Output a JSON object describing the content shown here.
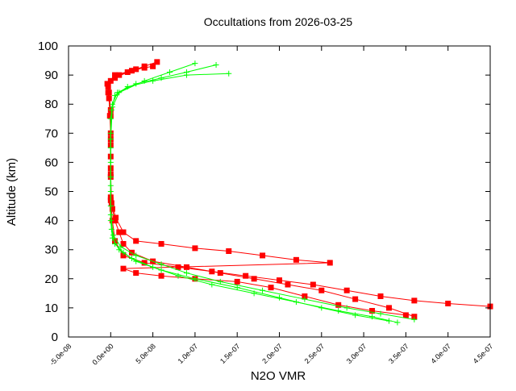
{
  "chart_data": {
    "type": "line",
    "title": "Occultations from 2026-03-25",
    "xlabel": "N2O VMR",
    "ylabel": "Altitude (km)",
    "xlim": [
      -5e-08,
      4.5e-07
    ],
    "ylim": [
      0,
      100
    ],
    "xticks": [
      "-5.0e-08",
      "0.0e+00",
      "5.0e-08",
      "1.0e-07",
      "1.5e-07",
      "2.0e-07",
      "2.5e-07",
      "3.0e-07",
      "3.5e-07",
      "4.0e-07",
      "4.5e-07"
    ],
    "xtick_values": [
      -5e-08,
      0,
      5e-08,
      1e-07,
      1.5e-07,
      2e-07,
      2.5e-07,
      3e-07,
      3.5e-07,
      4e-07,
      4.5e-07
    ],
    "yticks": [
      "0",
      "10",
      "20",
      "30",
      "40",
      "50",
      "60",
      "70",
      "80",
      "90",
      "100"
    ],
    "ytick_values": [
      0,
      10,
      20,
      30,
      40,
      50,
      60,
      70,
      80,
      90,
      100
    ],
    "grid": false,
    "legend": "none",
    "series": [
      {
        "marker": "square",
        "color": "#ff0000",
        "profiles": [
          [
            [
              3.6e-07,
              7
            ],
            [
              3.3e-07,
              10
            ],
            [
              2.9e-07,
              13
            ],
            [
              2.5e-07,
              16
            ],
            [
              2.1e-07,
              18
            ],
            [
              1.7e-07,
              20
            ],
            [
              1.3e-07,
              22
            ],
            [
              9e-08,
              24
            ],
            [
              5e-08,
              26
            ],
            [
              2.5e-08,
              29
            ],
            [
              1.5e-08,
              32
            ],
            [
              1e-08,
              36
            ],
            [
              5e-09,
              40
            ],
            [
              2e-09,
              44
            ],
            [
              0,
              48
            ],
            [
              0,
              55
            ],
            [
              0,
              62
            ],
            [
              0,
              70
            ],
            [
              -1e-09,
              76
            ],
            [
              -2e-09,
              82
            ],
            [
              -3e-09,
              86
            ],
            [
              5e-09,
              89
            ],
            [
              2e-08,
              91
            ],
            [
              4e-08,
              93
            ],
            [
              5.5e-08,
              94.5
            ]
          ],
          [
            [
              4.5e-07,
              10.5
            ],
            [
              4e-07,
              11.5
            ],
            [
              3.6e-07,
              12.5
            ],
            [
              3.2e-07,
              14
            ],
            [
              2.8e-07,
              16
            ],
            [
              2.4e-07,
              18
            ],
            [
              2e-07,
              19.5
            ],
            [
              1.6e-07,
              21
            ],
            [
              1.2e-07,
              22.5
            ],
            [
              8e-08,
              24
            ],
            [
              4e-08,
              25.5
            ],
            [
              1.5e-08,
              28
            ],
            [
              5e-09,
              33
            ],
            [
              2e-09,
              40
            ],
            [
              0,
              47
            ],
            [
              0,
              58
            ],
            [
              0,
              68
            ],
            [
              0,
              78
            ],
            [
              -2e-09,
              84
            ],
            [
              0,
              88
            ],
            [
              1e-08,
              90
            ],
            [
              3e-08,
              92
            ],
            [
              5e-08,
              93
            ]
          ],
          [
            [
              3.5e-07,
              7.5
            ],
            [
              3.1e-07,
              9
            ],
            [
              2.7e-07,
              11
            ],
            [
              2.3e-07,
              14
            ],
            [
              1.9e-07,
              17
            ],
            [
              1.5e-07,
              19
            ],
            [
              1e-07,
              20
            ],
            [
              6e-08,
              21
            ],
            [
              3e-08,
              22
            ],
            [
              1.5e-08,
              23.5
            ],
            [
              2.6e-07,
              25.5
            ],
            [
              2.2e-07,
              26.5
            ],
            [
              1.8e-07,
              28
            ],
            [
              1.4e-07,
              29.5
            ],
            [
              1e-07,
              30.5
            ],
            [
              6e-08,
              32
            ],
            [
              3e-08,
              33
            ],
            [
              1.5e-08,
              36
            ],
            [
              6e-09,
              41
            ],
            [
              1e-09,
              46
            ],
            [
              0,
              56
            ],
            [
              0,
              66
            ],
            [
              0,
              76
            ],
            [
              -3e-09,
              84
            ],
            [
              -4e-09,
              87
            ],
            [
              5e-09,
              90
            ],
            [
              2.5e-08,
              91.5
            ],
            [
              4e-08,
              92.5
            ]
          ]
        ]
      },
      {
        "marker": "plus",
        "color": "#00ff00",
        "profiles": [
          [
            [
              3.4e-07,
              5
            ],
            [
              3.1e-07,
              7
            ],
            [
              2.7e-07,
              9
            ],
            [
              2.2e-07,
              12
            ],
            [
              1.7e-07,
              15
            ],
            [
              1.2e-07,
              18
            ],
            [
              8e-08,
              21
            ],
            [
              5e-08,
              24
            ],
            [
              2.5e-08,
              27
            ],
            [
              1e-08,
              30
            ],
            [
              2e-09,
              34
            ],
            [
              0,
              40
            ],
            [
              0,
              50
            ],
            [
              0,
              60
            ],
            [
              0,
              70
            ],
            [
              1e-09,
              78
            ],
            [
              5e-09,
              83
            ],
            [
              2e-08,
              86
            ],
            [
              5e-08,
              88
            ],
            [
              9e-08,
              90
            ],
            [
              1.4e-07,
              90.5
            ]
          ],
          [
            [
              3.6e-07,
              6
            ],
            [
              3.2e-07,
              8
            ],
            [
              2.8e-07,
              10
            ],
            [
              2.3e-07,
              13
            ],
            [
              1.8e-07,
              16
            ],
            [
              1.3e-07,
              19
            ],
            [
              9e-08,
              22
            ],
            [
              6e-08,
              25
            ],
            [
              3e-08,
              28
            ],
            [
              1.2e-08,
              31
            ],
            [
              3e-09,
              35
            ],
            [
              0,
              42
            ],
            [
              0,
              52
            ],
            [
              0,
              65
            ],
            [
              0,
              75
            ],
            [
              2e-09,
              80
            ],
            [
              8e-09,
              84
            ],
            [
              3e-08,
              87
            ],
            [
              6e-08,
              89
            ],
            [
              9e-08,
              91
            ],
            [
              1.25e-07,
              93.5
            ]
          ],
          [
            [
              3.3e-07,
              5.5
            ],
            [
              2.9e-07,
              7.5
            ],
            [
              2.5e-07,
              10
            ],
            [
              2e-07,
              13.5
            ],
            [
              1.5e-07,
              17
            ],
            [
              1e-07,
              20
            ],
            [
              6e-08,
              23
            ],
            [
              3e-08,
              26
            ],
            [
              1.5e-08,
              29
            ],
            [
              5e-09,
              32
            ],
            [
              1e-09,
              37
            ],
            [
              0,
              45
            ],
            [
              0,
              55
            ],
            [
              0,
              68
            ],
            [
              2e-09,
              79
            ],
            [
              1e-08,
              84
            ],
            [
              4e-08,
              88
            ],
            [
              7e-08,
              91
            ],
            [
              1e-07,
              94
            ]
          ]
        ]
      }
    ]
  }
}
